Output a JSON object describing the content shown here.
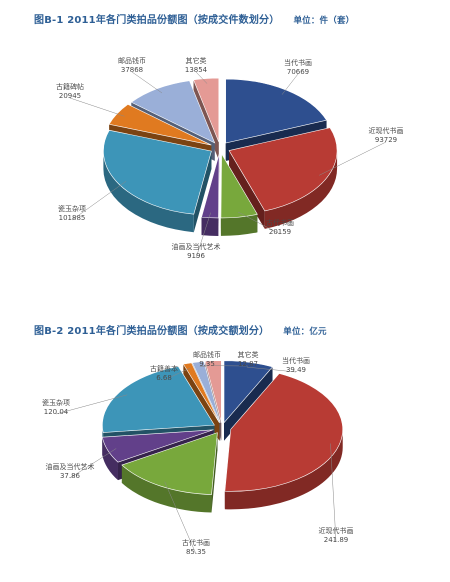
{
  "chart_data": [
    {
      "type": "pie",
      "title": "图B-1  2011年各门类拍品份额图（按成交件数划分）",
      "unit_label": "单位：件（套）",
      "slices": [
        {
          "label": "当代书画",
          "value": 70669,
          "color": "#2e4f8f"
        },
        {
          "label": "近现代书画",
          "value": 93729,
          "color": "#b83b34"
        },
        {
          "label": "古代书画",
          "value": 20159,
          "color": "#78a83c"
        },
        {
          "label": "油画及当代艺术",
          "value": 9196,
          "color": "#62408a"
        },
        {
          "label": "瓷玉杂项",
          "value": 101885,
          "color": "#3d95b8"
        },
        {
          "label": "古籍碑帖",
          "value": 20945,
          "color": "#e07a20"
        },
        {
          "label": "邮品钱币",
          "value": 37868,
          "color": "#9aafd8"
        },
        {
          "label": "其它类",
          "value": 13854,
          "color": "#e49a95"
        }
      ]
    },
    {
      "type": "pie",
      "title": "图B-2  2011年各门类拍品份额图（按成交额划分）",
      "unit_label": "单位：亿元",
      "slices": [
        {
          "label": "当代书画",
          "value": 39.49,
          "color": "#2e4f8f"
        },
        {
          "label": "近现代书画",
          "value": 241.89,
          "color": "#b83b34"
        },
        {
          "label": "古代书画",
          "value": 85.35,
          "color": "#78a83c"
        },
        {
          "label": "油画及当代艺术",
          "value": 37.86,
          "color": "#62408a"
        },
        {
          "label": "瓷玉杂项",
          "value": 120.04,
          "color": "#3d95b8"
        },
        {
          "label": "古籍善本",
          "value": 6.68,
          "color": "#e07a20"
        },
        {
          "label": "邮品钱币",
          "value": 9.35,
          "color": "#9aafd8"
        },
        {
          "label": "其它类",
          "value": 12.87,
          "color": "#e49a95"
        }
      ]
    }
  ]
}
